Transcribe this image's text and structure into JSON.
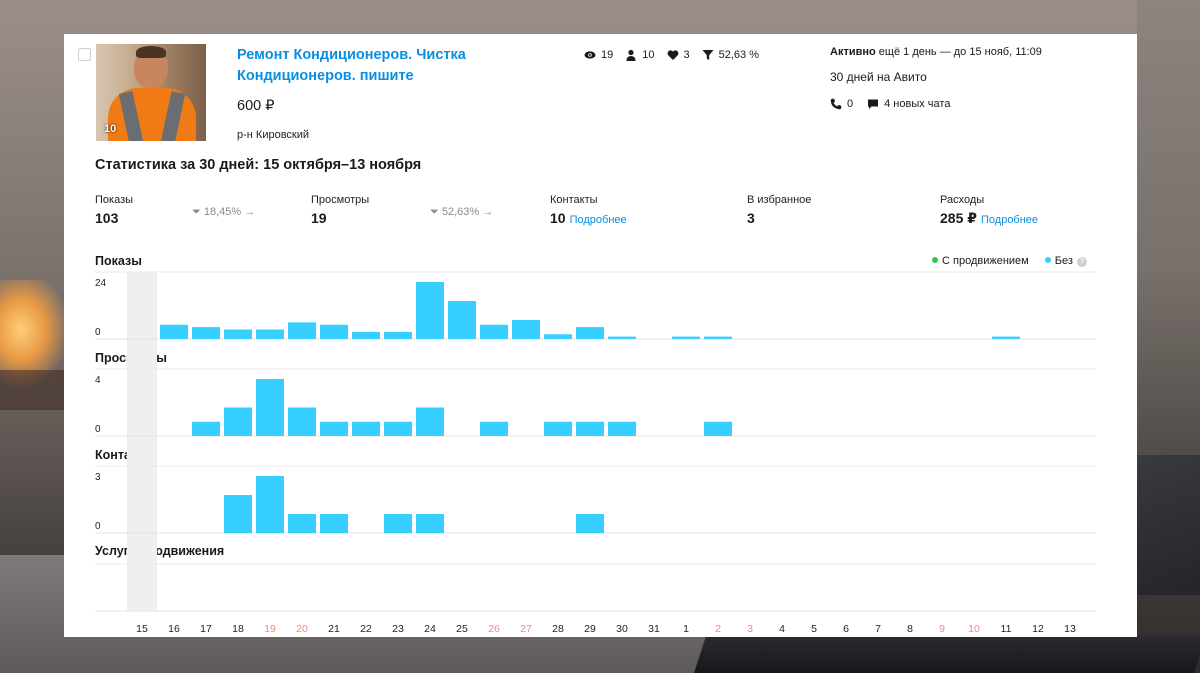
{
  "listing": {
    "title": "Ремонт Кондиционеров. Чистка Кондиционеров. пишите",
    "price": "600 ₽",
    "region": "р-н Кировский",
    "photo_count": "10"
  },
  "metrics": {
    "views": "19",
    "contacts": "10",
    "favorites": "3",
    "conversion": "52,63 %"
  },
  "status": {
    "active_label": "Активно",
    "active_rest": "ещё 1 день — до 15 нояб, 11:09",
    "days_on_avito": "30 дней на Авито",
    "calls": "0",
    "new_chats": "4 новых чата"
  },
  "stats": {
    "title": "Статистика за 30 дней: 15 октября–13 ноября",
    "impressions_label": "Показы",
    "impressions_value": "103",
    "impressions_conv": "18,45%",
    "views_label": "Просмотры",
    "views_value": "19",
    "views_conv": "52,63%",
    "contacts_label": "Контакты",
    "contacts_value": "10",
    "details_link": "Подробнее",
    "favorites_label": "В избранное",
    "favorites_value": "3",
    "expenses_label": "Расходы",
    "expenses_value": "285 ₽"
  },
  "legend": {
    "promoted": "С продвижением",
    "without": "Без",
    "help": "?",
    "promoted_color": "#2fc84b",
    "without_color": "#36cfff"
  },
  "chart_data": [
    {
      "type": "bar",
      "title": "Показы",
      "categories": [
        "15",
        "16",
        "17",
        "18",
        "19",
        "20",
        "21",
        "22",
        "23",
        "24",
        "25",
        "26",
        "27",
        "28",
        "29",
        "30",
        "31",
        "1",
        "2",
        "3",
        "4",
        "5",
        "6",
        "7",
        "8",
        "9",
        "10",
        "11",
        "12",
        "13"
      ],
      "values": [
        0,
        6,
        5,
        4,
        4,
        7,
        6,
        3,
        3,
        24,
        16,
        6,
        8,
        2,
        5,
        1,
        0,
        1,
        1,
        0,
        0,
        0,
        0,
        0,
        0,
        0,
        0,
        1,
        0,
        0
      ],
      "ylim": [
        0,
        24
      ],
      "ytick_labels": [
        "24",
        "0"
      ]
    },
    {
      "type": "bar",
      "title": "Просмотры",
      "categories": [
        "15",
        "16",
        "17",
        "18",
        "19",
        "20",
        "21",
        "22",
        "23",
        "24",
        "25",
        "26",
        "27",
        "28",
        "29",
        "30",
        "31",
        "1",
        "2",
        "3",
        "4",
        "5",
        "6",
        "7",
        "8",
        "9",
        "10",
        "11",
        "12",
        "13"
      ],
      "values": [
        0,
        0,
        1,
        2,
        4,
        2,
        1,
        1,
        1,
        2,
        0,
        1,
        0,
        1,
        1,
        1,
        0,
        0,
        1,
        0,
        0,
        0,
        0,
        0,
        0,
        0,
        0,
        0,
        0,
        0
      ],
      "ylim": [
        0,
        4
      ],
      "ytick_labels": [
        "4",
        "0"
      ]
    },
    {
      "type": "bar",
      "title": "Контакты",
      "categories": [
        "15",
        "16",
        "17",
        "18",
        "19",
        "20",
        "21",
        "22",
        "23",
        "24",
        "25",
        "26",
        "27",
        "28",
        "29",
        "30",
        "31",
        "1",
        "2",
        "3",
        "4",
        "5",
        "6",
        "7",
        "8",
        "9",
        "10",
        "11",
        "12",
        "13"
      ],
      "values": [
        0,
        0,
        0,
        2,
        3,
        1,
        1,
        0,
        1,
        1,
        0,
        0,
        0,
        0,
        1,
        0,
        0,
        0,
        0,
        0,
        0,
        0,
        0,
        0,
        0,
        0,
        0,
        0,
        0,
        0
      ],
      "ylim": [
        0,
        3
      ],
      "ytick_labels": [
        "3",
        "0"
      ]
    }
  ],
  "promo_title": "Услуги продвижения",
  "weekend_days": [
    "19",
    "20",
    "26",
    "27",
    "2",
    "3",
    "9",
    "10"
  ],
  "axis_color_weekend": "#f08a7a",
  "bar_color": "#36cfff"
}
